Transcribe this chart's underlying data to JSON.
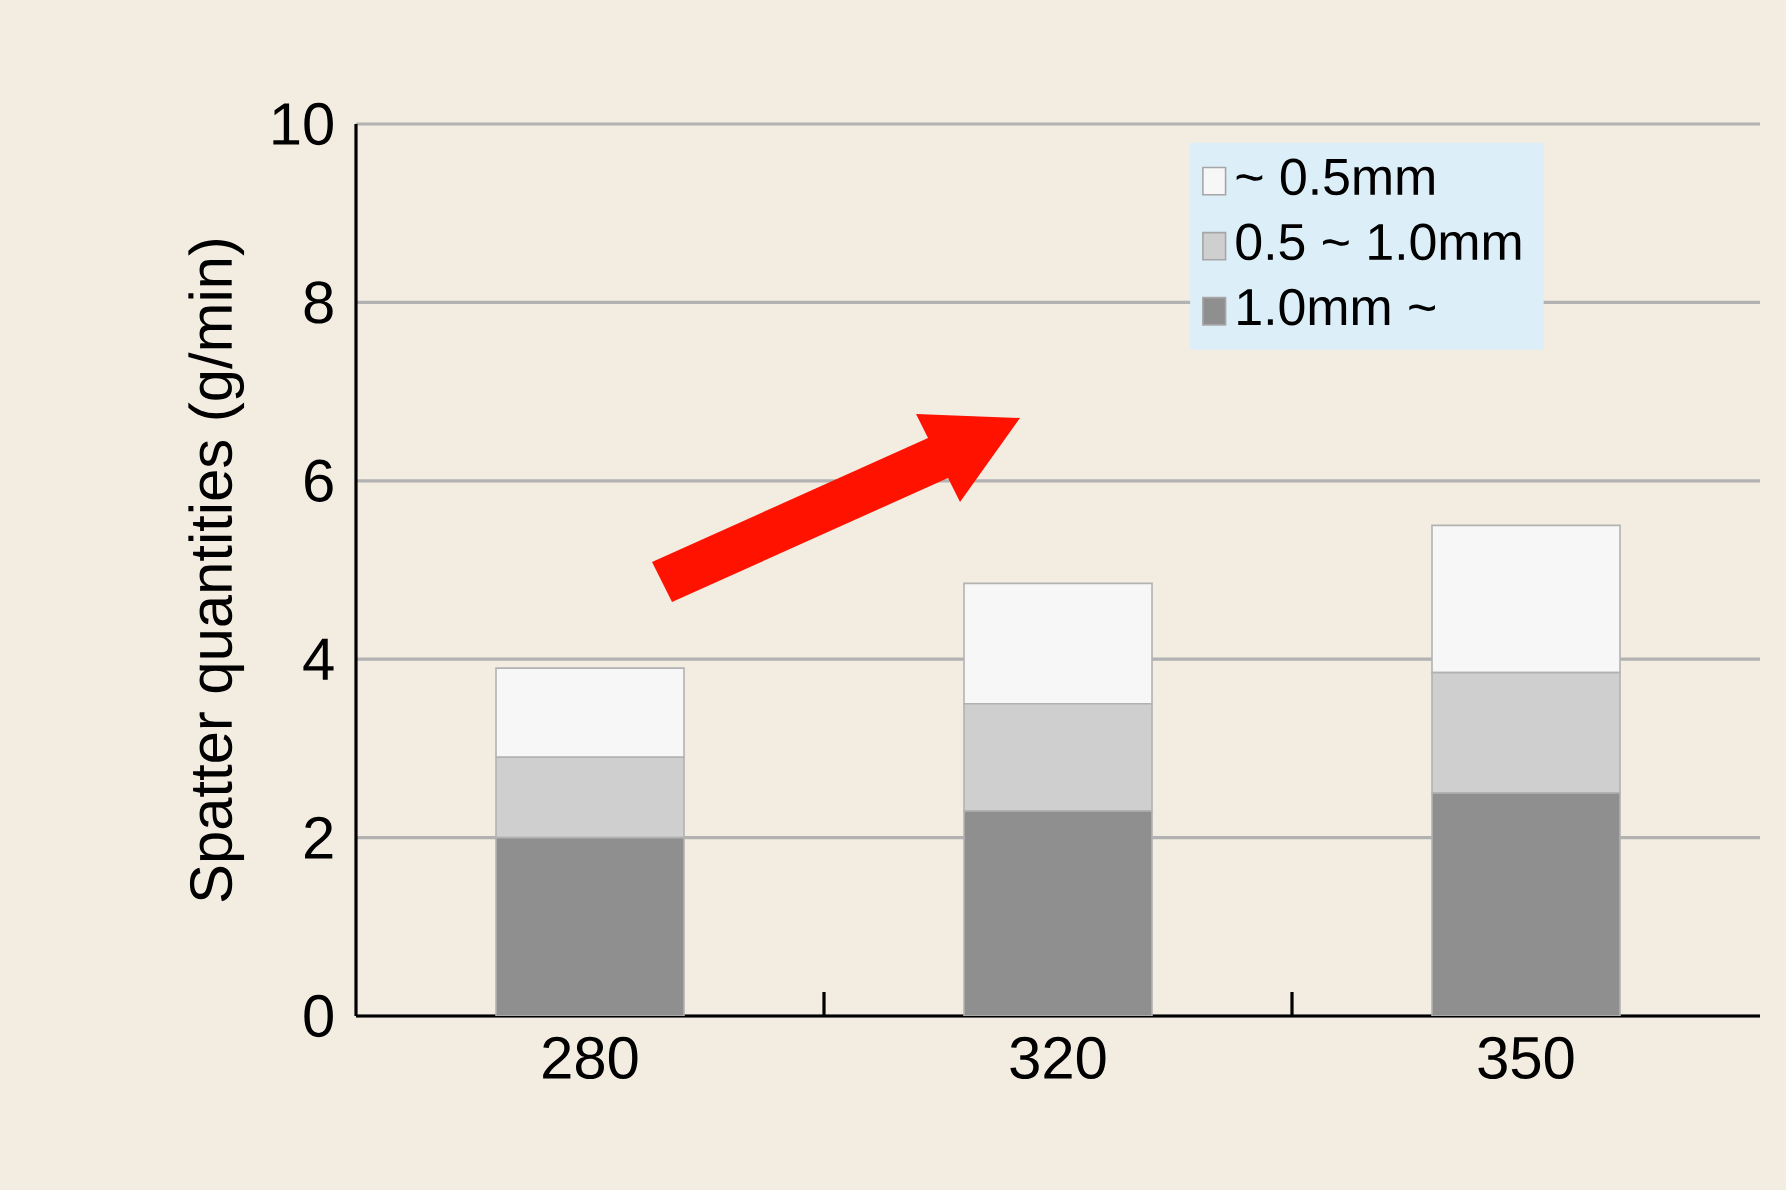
{
  "chart_data": {
    "type": "bar",
    "stacked": true,
    "ylabel": "Spatter quantities (g/min)",
    "categories": [
      "280",
      "320",
      "350"
    ],
    "series": [
      {
        "name": "1.0mm ~",
        "color": "#8f8f8f",
        "values": [
          2.0,
          2.3,
          2.5
        ]
      },
      {
        "name": "0.5 ~ 1.0mm",
        "color": "#cfcfcf",
        "values": [
          0.9,
          1.2,
          1.35
        ]
      },
      {
        "name": "~ 0.5mm",
        "color": "#f7f7f7",
        "values": [
          1.0,
          1.35,
          1.65
        ]
      }
    ],
    "ylim": [
      0,
      10
    ],
    "yticks": [
      0,
      2,
      4,
      6,
      8,
      10
    ],
    "grid": "y",
    "legend": "top right"
  }
}
